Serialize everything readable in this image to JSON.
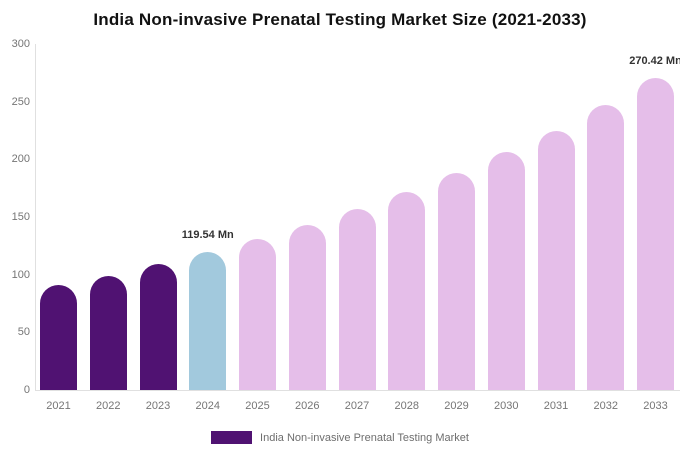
{
  "chart_data": {
    "type": "bar",
    "title": "India Non-invasive Prenatal Testing Market Size (2021-2033)",
    "unit": "Mn",
    "categories": [
      "2021",
      "2022",
      "2023",
      "2024",
      "2025",
      "2026",
      "2027",
      "2028",
      "2029",
      "2030",
      "2031",
      "2032",
      "2033"
    ],
    "values": [
      91,
      99,
      109,
      119.54,
      131,
      143,
      157,
      172,
      188,
      206,
      225,
      247,
      270.42
    ],
    "bar_colors": [
      "#501272",
      "#501272",
      "#501272",
      "#A2C9DD",
      "#E5BEE9",
      "#E5BEE9",
      "#E5BEE9",
      "#E5BEE9",
      "#E5BEE9",
      "#E5BEE9",
      "#E5BEE9",
      "#E5BEE9",
      "#E5BEE9"
    ],
    "point_labels": [
      {
        "category": "2024",
        "label": "119.54 Mn"
      },
      {
        "category": "2033",
        "label": "270.42 Mn"
      }
    ],
    "ylim": [
      0,
      300
    ],
    "yticks": [
      0,
      50,
      100,
      150,
      200,
      250,
      300
    ],
    "grid": false,
    "legend": {
      "label": "India Non-invasive Prenatal Testing Market",
      "position": "bottom",
      "swatch_color": "#501272"
    },
    "colors": {
      "historical": "#501272",
      "base_year": "#A2C9DD",
      "forecast": "#E5BEE9",
      "axis_line": "#e0e0e0",
      "tick_text": "#757575",
      "data_label_text": "#333333"
    }
  }
}
